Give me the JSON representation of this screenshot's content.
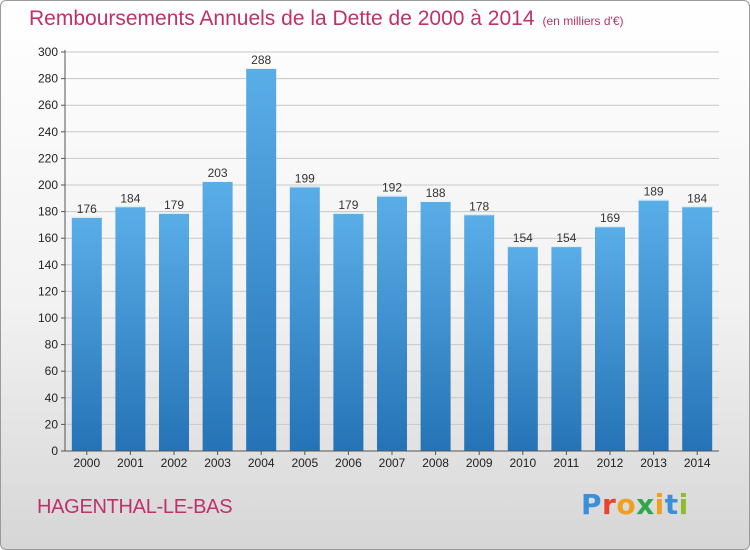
{
  "header": {
    "title": "Remboursements Annuels de la Dette de 2000 à 2014",
    "unit": "(en milliers d'€)"
  },
  "footer": {
    "commune": "HAGENTHAL-LE-BAS",
    "logo_letters": [
      "P",
      "r",
      "o",
      "x",
      "i",
      "t",
      "i"
    ],
    "logo_colors": [
      "#3a8fd6",
      "#e8432f",
      "#f0a020",
      "#2ea84a",
      "#f0a020",
      "#3a8fd6",
      "#8bbf2a"
    ]
  },
  "colors": {
    "title": "#c0306a",
    "bar_top": "#5aaee8",
    "bar_bottom": "#2573b6",
    "grid": "#c8c8c8"
  },
  "chart_data": {
    "type": "bar",
    "categories": [
      "2000",
      "2001",
      "2002",
      "2003",
      "2004",
      "2005",
      "2006",
      "2007",
      "2008",
      "2009",
      "2010",
      "2011",
      "2012",
      "2013",
      "2014"
    ],
    "values": [
      176,
      184,
      179,
      203,
      288,
      199,
      179,
      192,
      188,
      178,
      154,
      154,
      169,
      189,
      184
    ],
    "title": "Remboursements Annuels de la Dette de 2000 à 2014",
    "ylim": [
      0,
      300
    ],
    "yticks": [
      0,
      20,
      40,
      60,
      80,
      100,
      120,
      140,
      160,
      180,
      200,
      220,
      240,
      260,
      280,
      300
    ],
    "grid": true,
    "data_labels": true
  }
}
